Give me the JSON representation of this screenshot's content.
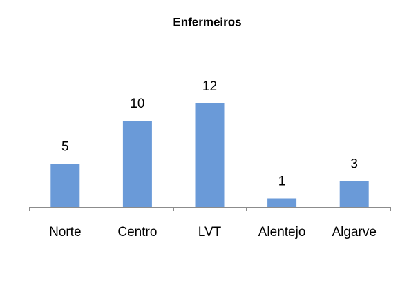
{
  "chart_data": {
    "type": "bar",
    "title": "Enfermeiros",
    "categories": [
      "Norte",
      "Centro",
      "LVT",
      "Alentejo",
      "Algarve"
    ],
    "values": [
      5,
      10,
      12,
      1,
      3
    ],
    "color": "#6a9ad8",
    "ylim": [
      0,
      14
    ]
  }
}
